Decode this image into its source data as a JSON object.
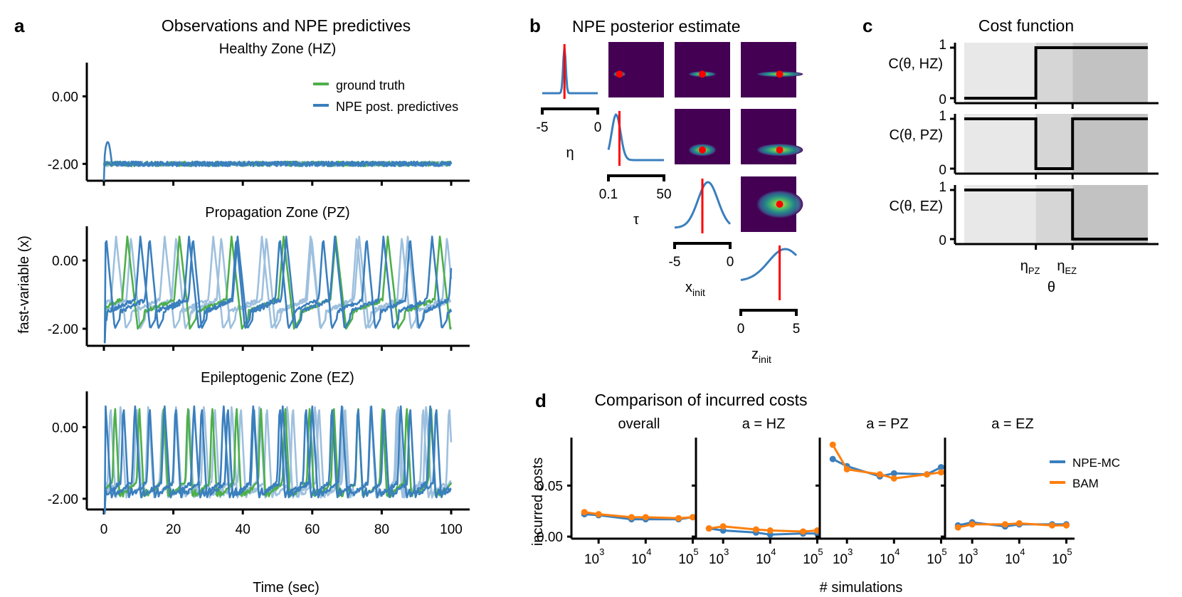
{
  "colors": {
    "ground_truth": "#4daf4a",
    "npe": "#3a7fbd",
    "npe_light": "#9ec0de",
    "bam": "#ff7f0e",
    "true_value": "#ff0000",
    "viridis_bg": "#440154",
    "shade_light": "#e8e8e8",
    "shade_mid": "#d6d6d6",
    "shade_dark": "#c2c2c2"
  },
  "chart_data": [
    {
      "id": "a",
      "panel_label": "a",
      "type": "line",
      "title": "Observations and NPE predictives",
      "xlabel": "Time (sec)",
      "ylabel": "fast-variable (x)",
      "xlim": [
        -4,
        104
      ],
      "xticks": [
        0,
        20,
        40,
        60,
        80,
        100
      ],
      "xtick_labels": [
        "0",
        "20",
        "40",
        "60",
        "80",
        "100"
      ],
      "yticks": [
        0.0,
        -2.0
      ],
      "ytick_labels": [
        "0.00",
        "-2.00"
      ],
      "legend": {
        "placement": "top-right",
        "entries": [
          "ground truth",
          "NPE post. predictives"
        ]
      },
      "subplots": [
        {
          "title": "Healthy Zone (HZ)",
          "ylim": [
            -2.5,
            1.0
          ],
          "behavior": "flat noisy around -2.0 with initial NPE transient to -1.35",
          "baseline": -2.0,
          "oscillation_periods": null
        },
        {
          "title": "Propagation Zone (PZ)",
          "ylim": [
            -2.5,
            1.0
          ],
          "behavior": "relaxation oscillations between about -2.1 and 0.7",
          "baseline": -1.5,
          "oscillation_periods": [
            14,
            13,
            15,
            12.5
          ]
        },
        {
          "title": "Epileptogenic Zone (EZ)",
          "ylim": [
            -2.3,
            1.0
          ],
          "behavior": "fast relaxation oscillations between about -2.1 and 0.8",
          "baseline": -1.9,
          "oscillation_periods": [
            7.5,
            8,
            7,
            8.5
          ]
        }
      ]
    },
    {
      "id": "b",
      "panel_label": "b",
      "type": "heatmap",
      "title": "NPE posterior estimate",
      "parameters": [
        {
          "name": "η",
          "sub": "",
          "range_labels": [
            "-5",
            "0"
          ],
          "range": [
            -5,
            0
          ],
          "true_value": -3.0,
          "marginal_mode": -3.0,
          "marginal_width": 0.12
        },
        {
          "name": "τ",
          "sub": "",
          "range_labels": [
            "0.1",
            "50"
          ],
          "range": [
            0.1,
            50
          ],
          "true_value": 10,
          "marginal_mode": 7,
          "marginal_width": 4
        },
        {
          "name": "x",
          "sub": "init",
          "range_labels": [
            "-5",
            "0"
          ],
          "range": [
            -5,
            0
          ],
          "true_value": -2.5,
          "marginal_mode": -2.0,
          "marginal_width": 0.9
        },
        {
          "name": "z",
          "sub": "init",
          "range_labels": [
            "0",
            "5"
          ],
          "range": [
            0,
            5
          ],
          "true_value": 3.5,
          "marginal_mode": 4.0,
          "marginal_width": 1.5
        }
      ]
    },
    {
      "id": "c",
      "panel_label": "c",
      "type": "line",
      "title": "Cost function",
      "xlabel": "θ",
      "xtick_labels": [
        {
          "base": "η",
          "sub": "PZ"
        },
        {
          "base": "η",
          "sub": "EZ"
        }
      ],
      "yticks": [
        0,
        1
      ],
      "ytick_labels": [
        "0",
        "1"
      ],
      "region_breaks": [
        0.39,
        0.59
      ],
      "series": [
        {
          "ylabel": "C(θ, HZ)",
          "step_values": [
            0,
            1,
            1
          ]
        },
        {
          "ylabel": "C(θ, PZ)",
          "step_values": [
            1,
            0,
            1
          ]
        },
        {
          "ylabel": "C(θ, EZ)",
          "step_values": [
            1,
            1,
            0
          ]
        }
      ]
    },
    {
      "id": "d",
      "panel_label": "d",
      "type": "line",
      "title": "Comparison of incurred costs",
      "xlabel": "# simulations",
      "ylabel": "incurred costs",
      "xscale": "log",
      "x": [
        500,
        1000,
        5000,
        10000,
        50000,
        100000
      ],
      "xticks": [
        1000,
        10000,
        100000
      ],
      "xtick_labels": [
        {
          "base": "10",
          "exp": "3"
        },
        {
          "base": "10",
          "exp": "4"
        },
        {
          "base": "10",
          "exp": "5"
        }
      ],
      "ylim": [
        -0.002,
        0.097
      ],
      "yticks": [
        0.0,
        0.05
      ],
      "ytick_labels": [
        "0.00",
        "0.05"
      ],
      "legend": {
        "placement": "top-right of last subplot",
        "entries": [
          "NPE-MC",
          "BAM"
        ]
      },
      "subplots": [
        {
          "title": "overall",
          "series": [
            {
              "name": "NPE-MC",
              "values": [
                0.022,
                0.021,
                0.017,
                0.017,
                0.017,
                0.019
              ]
            },
            {
              "name": "BAM",
              "values": [
                0.024,
                0.022,
                0.019,
                0.019,
                0.018,
                0.019
              ]
            }
          ]
        },
        {
          "title": "a = HZ",
          "series": [
            {
              "name": "NPE-MC",
              "values": [
                0.008,
                0.006,
                0.004,
                0.002,
                0.003,
                0.003
              ]
            },
            {
              "name": "BAM",
              "values": [
                0.008,
                0.01,
                0.007,
                0.006,
                0.005,
                0.006
              ]
            }
          ]
        },
        {
          "title": "a = PZ",
          "series": [
            {
              "name": "NPE-MC",
              "values": [
                0.076,
                0.069,
                0.059,
                0.062,
                0.061,
                0.068
              ]
            },
            {
              "name": "BAM",
              "values": [
                0.09,
                0.066,
                0.061,
                0.057,
                0.061,
                0.063
              ]
            }
          ]
        },
        {
          "title": "a = EZ",
          "series": [
            {
              "name": "NPE-MC",
              "values": [
                0.011,
                0.014,
                0.01,
                0.012,
                0.012,
                0.012
              ]
            },
            {
              "name": "BAM",
              "values": [
                0.009,
                0.012,
                0.012,
                0.013,
                0.011,
                0.011
              ]
            }
          ]
        }
      ]
    }
  ]
}
